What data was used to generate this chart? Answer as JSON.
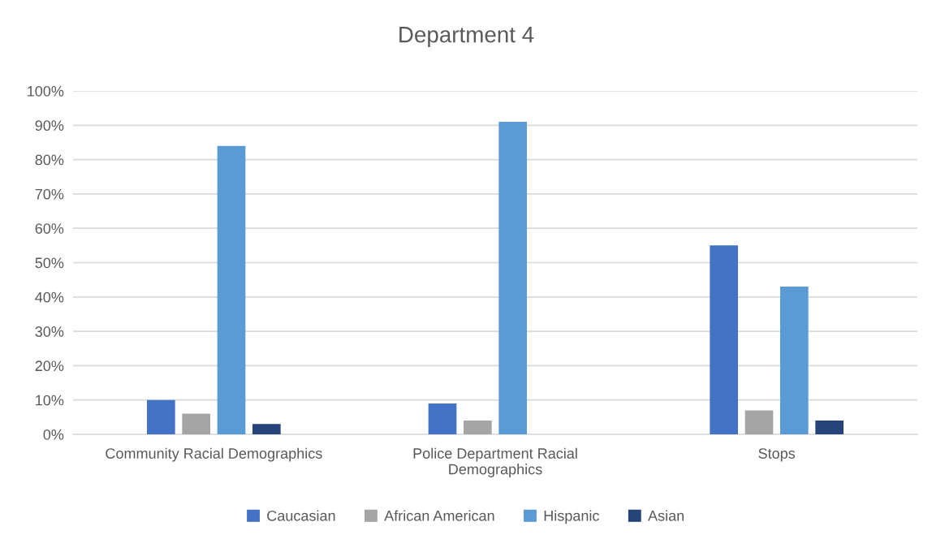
{
  "chart_data": {
    "type": "bar",
    "title": "Department 4",
    "categories": [
      "Community Racial Demographics",
      "Police Department Racial\nDemographics",
      "Stops"
    ],
    "series": [
      {
        "name": "Caucasian",
        "color": "#4472c4",
        "values": [
          10,
          9,
          55
        ]
      },
      {
        "name": "African American",
        "color": "#a5a5a5",
        "values": [
          6,
          4,
          7
        ]
      },
      {
        "name": "Hispanic",
        "color": "#5b9bd5",
        "values": [
          84,
          91,
          43
        ]
      },
      {
        "name": "Asian",
        "color": "#264478",
        "values": [
          3,
          0,
          4
        ]
      }
    ],
    "ylim": [
      0,
      100
    ],
    "yticks": [
      {
        "value": 0,
        "label": "0%"
      },
      {
        "value": 10,
        "label": "10%"
      },
      {
        "value": 20,
        "label": "20%"
      },
      {
        "value": 30,
        "label": "30%"
      },
      {
        "value": 40,
        "label": "40%"
      },
      {
        "value": 50,
        "label": "50%"
      },
      {
        "value": 60,
        "label": "60%"
      },
      {
        "value": 70,
        "label": "70%"
      },
      {
        "value": 80,
        "label": "80%"
      },
      {
        "value": 90,
        "label": "90%"
      },
      {
        "value": 100,
        "label": "100%"
      }
    ],
    "grid": "y",
    "legend": "bottom"
  }
}
